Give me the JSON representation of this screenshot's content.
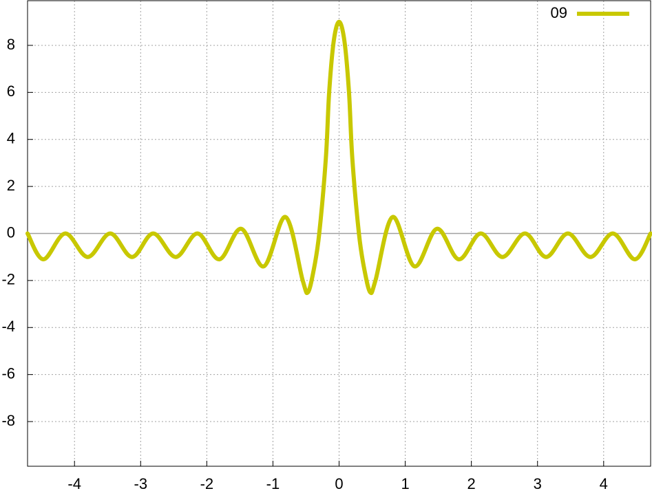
{
  "chart_data": {
    "type": "line",
    "x": [
      -4.71,
      -4.47,
      -4.14,
      -3.8,
      -3.46,
      -3.13,
      -2.81,
      -2.47,
      -2.14,
      -1.81,
      -1.48,
      -1.14,
      -0.81,
      -0.55,
      -0.47,
      -0.38,
      -0.3,
      -0.2,
      -0.15,
      -0.08,
      0,
      0.08,
      0.15,
      0.2,
      0.3,
      0.38,
      0.47,
      0.55,
      0.81,
      1.14,
      1.48,
      1.81,
      2.14,
      2.47,
      2.81,
      3.13,
      3.46,
      3.8,
      4.14,
      4.47,
      4.71
    ],
    "series": [
      {
        "name": "09",
        "color": "#c8c800",
        "values": [
          0,
          -1.1,
          0,
          -1,
          0,
          -1,
          0,
          -1,
          0,
          -1.1,
          0.2,
          -1.4,
          0.7,
          -2.0,
          -2.5,
          -1.5,
          0,
          3.2,
          6,
          8.2,
          9,
          8.2,
          6,
          3.2,
          0,
          -1.5,
          -2.5,
          -2.0,
          0.7,
          -1.4,
          0.2,
          -1.1,
          0,
          -1,
          0,
          -1,
          0,
          -1,
          0,
          -1.1,
          0
        ]
      }
    ],
    "xlim": [
      -4.71,
      4.71
    ],
    "ylim": [
      -9.9,
      9.9
    ],
    "xticks": [
      -4,
      -3,
      -2,
      -1,
      0,
      1,
      2,
      3,
      4
    ],
    "yticks": [
      -8,
      -6,
      -4,
      -2,
      0,
      2,
      4,
      6,
      8
    ],
    "grid": true,
    "legend": "top-right"
  }
}
